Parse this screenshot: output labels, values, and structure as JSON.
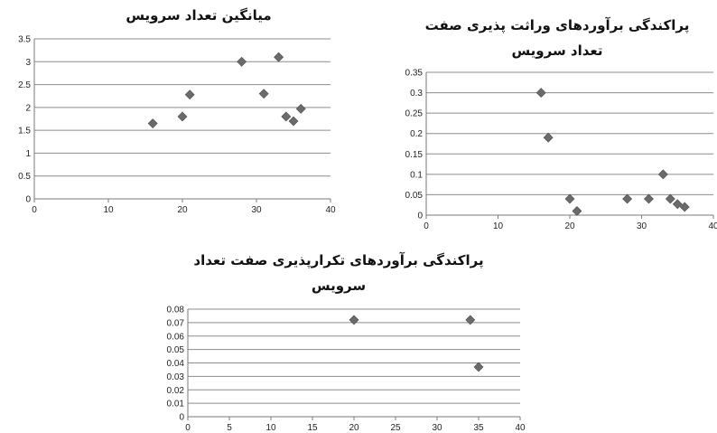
{
  "chart_data": [
    {
      "type": "scatter",
      "title": "میانگین تعداد سرویس",
      "xlim": [
        0,
        40
      ],
      "ylim": [
        0,
        3.5
      ],
      "x_ticks": [
        "0",
        "10",
        "20",
        "30",
        "40"
      ],
      "y_ticks": [
        "0",
        "0.5",
        "1",
        "1.5",
        "2",
        "2.5",
        "3",
        "3.5"
      ],
      "grid": "horizontal",
      "marker": "diamond",
      "color": "#6b6b6b",
      "points": [
        {
          "x": 16,
          "y": 1.65
        },
        {
          "x": 20,
          "y": 1.8
        },
        {
          "x": 21,
          "y": 2.28
        },
        {
          "x": 28,
          "y": 3.0
        },
        {
          "x": 31,
          "y": 2.3
        },
        {
          "x": 33,
          "y": 3.1
        },
        {
          "x": 34,
          "y": 1.8
        },
        {
          "x": 35,
          "y": 1.7
        },
        {
          "x": 36,
          "y": 1.97
        }
      ]
    },
    {
      "type": "scatter",
      "title": "پراکندگی برآوردهای وراثت پذیری صفت تعداد سرویس",
      "title_lines": [
        "پراکندگی برآوردهای وراثت پذیری صفت",
        "تعداد سرویس"
      ],
      "xlim": [
        0,
        40
      ],
      "ylim": [
        0,
        0.35
      ],
      "x_ticks": [
        "0",
        "10",
        "20",
        "30",
        "40"
      ],
      "y_ticks": [
        "0",
        "0.05",
        "0.1",
        "0.15",
        "0.2",
        "0.25",
        "0.3",
        "0.35"
      ],
      "grid": "horizontal",
      "marker": "diamond",
      "color": "#6b6b6b",
      "points": [
        {
          "x": 16,
          "y": 0.3
        },
        {
          "x": 17,
          "y": 0.19
        },
        {
          "x": 20,
          "y": 0.04
        },
        {
          "x": 21,
          "y": 0.01
        },
        {
          "x": 28,
          "y": 0.04
        },
        {
          "x": 31,
          "y": 0.04
        },
        {
          "x": 33,
          "y": 0.1
        },
        {
          "x": 34,
          "y": 0.04
        },
        {
          "x": 35,
          "y": 0.027
        },
        {
          "x": 36,
          "y": 0.02
        }
      ]
    },
    {
      "type": "scatter",
      "title": "پراکندگی برآوردهای تکرارپذیری صفت تعداد سرویس",
      "title_lines": [
        "پراکندگی برآوردهای تکرارپذیری صفت تعداد",
        "سرویس"
      ],
      "xlim": [
        0,
        40
      ],
      "ylim": [
        0,
        0.08
      ],
      "x_ticks": [
        "0",
        "5",
        "10",
        "15",
        "20",
        "25",
        "30",
        "35",
        "40"
      ],
      "y_ticks": [
        "0",
        "0.01",
        "0.02",
        "0.03",
        "0.04",
        "0.05",
        "0.06",
        "0.07",
        "0.08"
      ],
      "grid": "horizontal",
      "marker": "diamond",
      "color": "#6b6b6b",
      "points": [
        {
          "x": 20,
          "y": 0.072
        },
        {
          "x": 34,
          "y": 0.072
        },
        {
          "x": 35,
          "y": 0.037
        }
      ]
    }
  ]
}
